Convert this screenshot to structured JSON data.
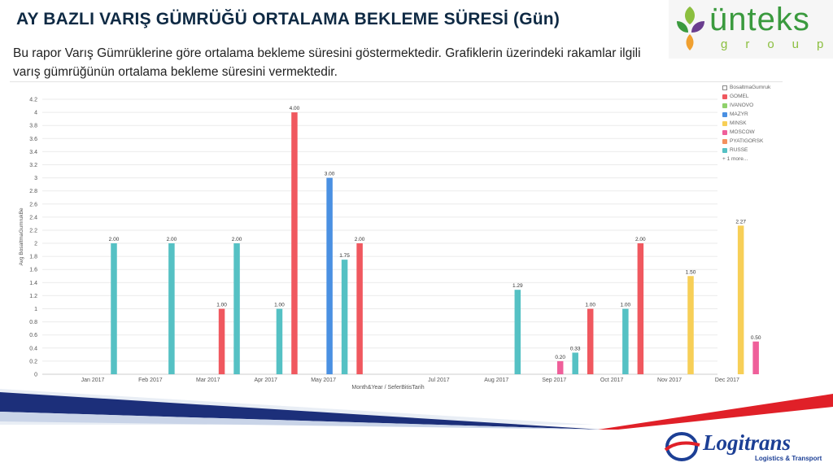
{
  "header": {
    "title": "AY BAZLI VARIŞ GÜMRÜĞÜ ORTALAMA BEKLEME SÜRESİ (Gün)",
    "description": "Bu rapor Varış Gümrüklerine göre ortalama bekleme süresini göstermektedir. Grafiklerin üzerindeki rakamlar ilgili varış gümrüğünün ortalama bekleme süresini vermektedir."
  },
  "logos": {
    "top_right_word": "ünteks",
    "top_right_sub": "group",
    "bottom_right_word": "Logitrans",
    "bottom_right_sub": "Logistics & Transport"
  },
  "colors": {
    "GOMEL": "#f0585f",
    "IVANOVO": "#8fd16b",
    "MAZYR": "#4a90e2",
    "MINSK": "#f7cf57",
    "MOSCOW": "#ef5f9a",
    "PYATIGORSK": "#f4905e",
    "RUSSE": "#55c1c4",
    "title": "#0f2a44",
    "band_navy": "#1c2f7a",
    "band_red": "#e02028"
  },
  "legend": {
    "header": "BosaltmaGumruk",
    "items": [
      "GOMEL",
      "IVANOVO",
      "MAZYR",
      "MINSK",
      "MOSCOW",
      "PYATIGORSK",
      "RUSSE"
    ],
    "more": "+ 1 more..."
  },
  "chart_data": {
    "type": "bar",
    "xlabel": "Month&Year / SeferBitisTarih",
    "ylabel": "Avg BosaltmaGumrukBe",
    "ylim": [
      0,
      4.2
    ],
    "yticks": [
      "0",
      "0.2",
      "0.4",
      "0.6",
      "0.8",
      "1",
      "1.2",
      "1.4",
      "1.6",
      "1.8",
      "2",
      "2.2",
      "2.4",
      "2.6",
      "2.8",
      "3",
      "3.2",
      "3.4",
      "3.6",
      "3.8",
      "4",
      "4.2"
    ],
    "categories": [
      "Jan 2017",
      "Feb 2017",
      "Mar 2017",
      "Apr 2017",
      "May 2017",
      "Jul 2017",
      "Aug 2017",
      "Sep 2017",
      "Oct 2017",
      "Nov 2017",
      "Dec 2017"
    ],
    "grid": true,
    "legend_position": "right",
    "bars": [
      {
        "category": "Jan 2017",
        "series": "RUSSE",
        "value": 2.0,
        "label": "2.00"
      },
      {
        "category": "Feb 2017",
        "series": "RUSSE",
        "value": 2.0,
        "label": "2.00"
      },
      {
        "category": "Mar 2017",
        "series": "GOMEL",
        "value": 1.0,
        "label": "1.00"
      },
      {
        "category": "Mar 2017",
        "series": "RUSSE",
        "value": 2.0,
        "label": "2.00"
      },
      {
        "category": "Apr 2017",
        "series": "RUSSE",
        "value": 1.0,
        "label": "1.00"
      },
      {
        "category": "Apr 2017",
        "series": "GOMEL",
        "value": 4.0,
        "label": "4.00"
      },
      {
        "category": "May 2017",
        "series": "MAZYR",
        "value": 3.0,
        "label": "3.00"
      },
      {
        "category": "May 2017",
        "series": "RUSSE",
        "value": 1.75,
        "label": "1.75"
      },
      {
        "category": "May 2017",
        "series": "GOMEL",
        "value": 2.0,
        "label": "2.00"
      },
      {
        "category": "Aug 2017",
        "series": "RUSSE",
        "value": 1.29,
        "label": "1.29"
      },
      {
        "category": "Sep 2017",
        "series": "MOSCOW",
        "value": 0.2,
        "label": "0.20"
      },
      {
        "category": "Sep 2017",
        "series": "RUSSE",
        "value": 0.33,
        "label": "0.33"
      },
      {
        "category": "Sep 2017",
        "series": "GOMEL",
        "value": 1.0,
        "label": "1.00"
      },
      {
        "category": "Oct 2017",
        "series": "RUSSE",
        "value": 1.0,
        "label": "1.00"
      },
      {
        "category": "Oct 2017",
        "series": "GOMEL",
        "value": 2.0,
        "label": "2.00"
      },
      {
        "category": "Nov 2017",
        "series": "MINSK",
        "value": 1.5,
        "label": "1.50"
      },
      {
        "category": "Dec 2017",
        "series": "MINSK",
        "value": 2.27,
        "label": "2.27"
      },
      {
        "category": "Dec 2017",
        "series": "MOSCOW",
        "value": 0.5,
        "label": "0.50"
      }
    ]
  }
}
